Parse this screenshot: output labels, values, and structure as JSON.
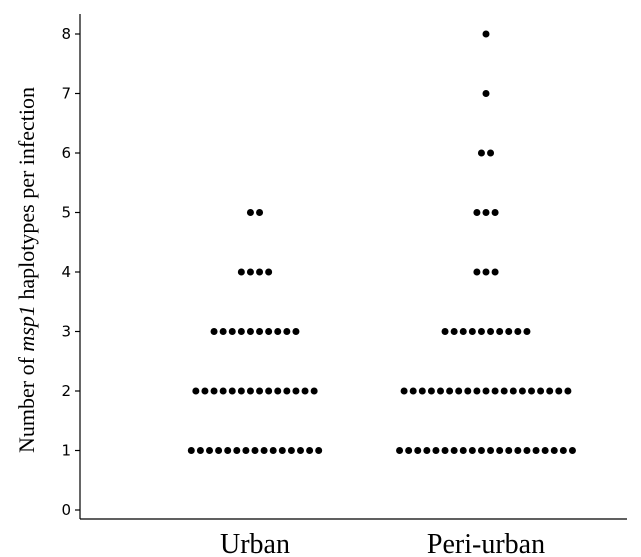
{
  "chart_data": {
    "type": "scatter",
    "subtype": "dot-plot",
    "title": "",
    "ylabel_prefix": "Number of ",
    "ylabel_italic": "msp1",
    "ylabel_suffix": " haplotypes per infection",
    "xlabel": "",
    "categories": [
      "Urban",
      "Peri-urban"
    ],
    "y_ticks": [
      "0",
      "1",
      "2",
      "3",
      "4",
      "5",
      "6",
      "7",
      "8"
    ],
    "ylim": [
      0,
      8.4
    ],
    "grid": false,
    "legend": "none",
    "dot_color": "#000000",
    "series": [
      {
        "category": "Urban",
        "counts": [
          {
            "y": 1,
            "n": 15
          },
          {
            "y": 2,
            "n": 14
          },
          {
            "y": 3,
            "n": 10
          },
          {
            "y": 4,
            "n": 4
          },
          {
            "y": 5,
            "n": 2
          }
        ]
      },
      {
        "category": "Peri-urban",
        "counts": [
          {
            "y": 1,
            "n": 20
          },
          {
            "y": 2,
            "n": 19
          },
          {
            "y": 3,
            "n": 10
          },
          {
            "y": 4,
            "n": 3
          },
          {
            "y": 5,
            "n": 3
          },
          {
            "y": 6,
            "n": 2
          },
          {
            "y": 7,
            "n": 1
          },
          {
            "y": 8,
            "n": 1
          }
        ]
      }
    ]
  }
}
